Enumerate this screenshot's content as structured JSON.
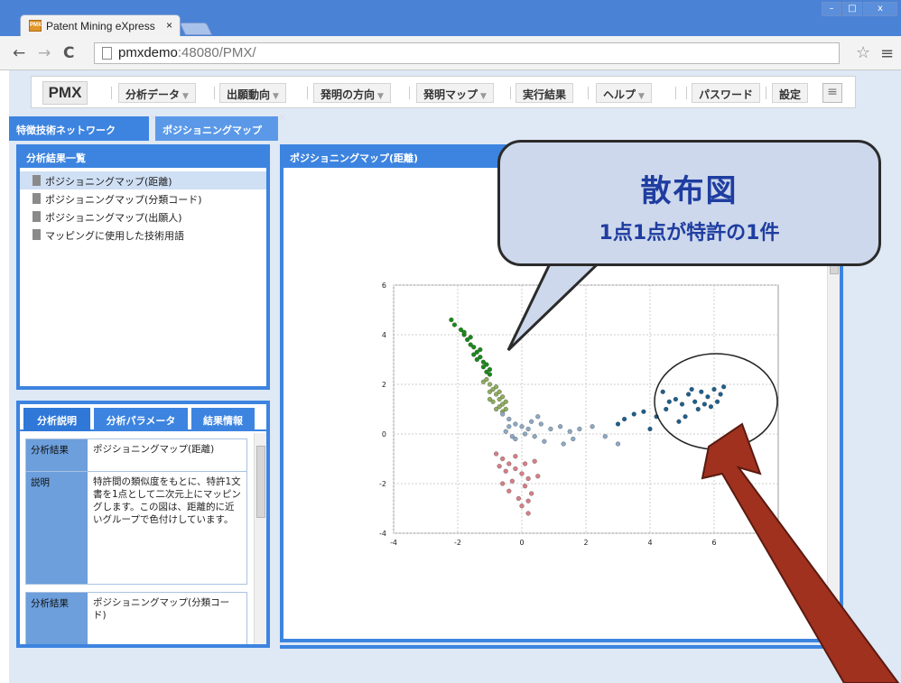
{
  "browser": {
    "tab_title": "Patent Mining eXpress",
    "tab_close": "×",
    "favicon_text": "PMX",
    "url_host": "pmxdemo",
    "url_rest": ":48080/PMX/",
    "window_buttons": [
      "–",
      "□",
      "x"
    ]
  },
  "toolbar": {
    "logo": "PMX",
    "menus": [
      {
        "label": "分析データ",
        "caret": "▼"
      },
      {
        "label": "出願動向",
        "caret": "▼"
      },
      {
        "label": "発明の方向",
        "caret": "▼"
      },
      {
        "label": "発明マップ",
        "caret": "▼"
      },
      {
        "label": "実行結果",
        "caret": ""
      },
      {
        "label": "ヘルプ",
        "caret": "▼"
      },
      {
        "label": "パスワード",
        "caret": ""
      },
      {
        "label": "設定",
        "caret": ""
      }
    ],
    "list_icon": "≡"
  },
  "main_tabs": [
    {
      "label": "特徴技術ネットワーク",
      "close": "×"
    },
    {
      "label": "ポジショニングマップ",
      "close": "×"
    }
  ],
  "results_panel": {
    "title": "分析結果一覧",
    "items": [
      "ポジショニングマップ(距離)",
      "ポジショニングマップ(分類コード)",
      "ポジショニングマップ(出願人)",
      "マッピングに使用した技術用語"
    ]
  },
  "info_panel": {
    "tabs": [
      "分析説明",
      "分析パラメータ",
      "結果情報"
    ],
    "rows": [
      {
        "k": "分析結果",
        "v": "ポジショニングマップ(距離)"
      },
      {
        "k": "説明",
        "v": "特許間の類似度をもとに、特許1文書を1点として二次元上にマッピングします。この図は、距離的に近いグループで色付けしています。"
      }
    ],
    "rows2": [
      {
        "k": "分析結果",
        "v": "ポジショニングマップ(分類コード)"
      }
    ]
  },
  "chart_panel": {
    "title": "ポジショニングマップ(距離)"
  },
  "callout": {
    "title": "散布図",
    "subtitle": "1点1点が特許の1件"
  },
  "chart_data": {
    "type": "scatter",
    "xlim": [
      -4,
      8
    ],
    "ylim": [
      -4,
      6
    ],
    "x_ticks": [
      "-4",
      "-2",
      "0",
      "2",
      "4",
      "6"
    ],
    "y_ticks": [
      "6",
      "4",
      "2",
      "0",
      "-2",
      "-4"
    ],
    "grid": true,
    "series": [
      {
        "color": "#1a8a1a",
        "points": [
          [
            -2.2,
            4.6
          ],
          [
            -2.1,
            4.4
          ],
          [
            -1.9,
            4.2
          ],
          [
            -1.8,
            4.0
          ],
          [
            -1.7,
            3.8
          ],
          [
            -1.6,
            3.6
          ],
          [
            -1.5,
            3.5
          ],
          [
            -1.4,
            3.3
          ],
          [
            -1.3,
            3.1
          ],
          [
            -1.2,
            2.9
          ],
          [
            -1.1,
            2.8
          ],
          [
            -1.0,
            2.6
          ],
          [
            -1.3,
            3.4
          ],
          [
            -1.6,
            3.9
          ],
          [
            -1.4,
            3.0
          ],
          [
            -1.2,
            2.7
          ],
          [
            -1.5,
            3.2
          ],
          [
            -1.1,
            2.5
          ],
          [
            -1.8,
            4.1
          ],
          [
            -1.0,
            2.4
          ]
        ]
      },
      {
        "color": "#8fae5e",
        "points": [
          [
            -1.1,
            2.2
          ],
          [
            -1.0,
            2.0
          ],
          [
            -0.9,
            1.8
          ],
          [
            -0.8,
            1.6
          ],
          [
            -0.7,
            1.4
          ],
          [
            -0.6,
            1.2
          ],
          [
            -0.5,
            1.0
          ],
          [
            -1.0,
            1.7
          ],
          [
            -0.8,
            1.9
          ],
          [
            -0.6,
            1.5
          ],
          [
            -0.9,
            1.3
          ],
          [
            -0.7,
            1.1
          ],
          [
            -1.2,
            2.1
          ],
          [
            -0.5,
            1.3
          ],
          [
            -0.8,
            1.0
          ],
          [
            -1.0,
            1.4
          ],
          [
            -0.6,
            0.9
          ],
          [
            -0.7,
            1.7
          ]
        ]
      },
      {
        "color": "#8da9c4",
        "points": [
          [
            -0.6,
            0.8
          ],
          [
            -0.4,
            0.6
          ],
          [
            -0.2,
            0.4
          ],
          [
            0.0,
            0.3
          ],
          [
            0.2,
            0.2
          ],
          [
            -0.5,
            0.1
          ],
          [
            -0.3,
            -0.1
          ],
          [
            0.1,
            0.0
          ],
          [
            0.3,
            0.5
          ],
          [
            0.6,
            0.4
          ],
          [
            0.9,
            0.2
          ],
          [
            1.2,
            0.3
          ],
          [
            1.5,
            0.1
          ],
          [
            1.8,
            0.2
          ],
          [
            1.6,
            -0.2
          ],
          [
            1.3,
            -0.4
          ],
          [
            2.2,
            0.3
          ],
          [
            2.6,
            -0.1
          ],
          [
            3.0,
            -0.4
          ],
          [
            -0.2,
            -0.2
          ],
          [
            0.4,
            -0.1
          ],
          [
            0.7,
            -0.3
          ],
          [
            -0.4,
            0.3
          ],
          [
            0.5,
            0.7
          ]
        ]
      },
      {
        "color": "#d77f86",
        "points": [
          [
            -0.8,
            -0.8
          ],
          [
            -0.6,
            -1.0
          ],
          [
            -0.4,
            -1.2
          ],
          [
            -0.2,
            -1.4
          ],
          [
            0.0,
            -1.6
          ],
          [
            0.2,
            -1.8
          ],
          [
            -0.5,
            -1.5
          ],
          [
            -0.3,
            -1.9
          ],
          [
            0.1,
            -2.1
          ],
          [
            0.3,
            -2.4
          ],
          [
            -0.1,
            -2.6
          ],
          [
            0.0,
            -2.9
          ],
          [
            0.2,
            -3.2
          ],
          [
            -0.6,
            -2.0
          ],
          [
            0.4,
            -1.1
          ],
          [
            -0.2,
            -0.9
          ],
          [
            0.5,
            -1.7
          ],
          [
            -0.4,
            -2.3
          ],
          [
            0.1,
            -1.2
          ],
          [
            -0.7,
            -1.3
          ],
          [
            0.2,
            -2.7
          ]
        ]
      },
      {
        "color": "#1e5f8c",
        "points": [
          [
            3.0,
            0.4
          ],
          [
            3.2,
            0.6
          ],
          [
            3.5,
            0.8
          ],
          [
            3.8,
            0.9
          ],
          [
            4.2,
            0.7
          ],
          [
            4.5,
            1.0
          ],
          [
            4.8,
            1.4
          ],
          [
            5.0,
            1.2
          ],
          [
            5.2,
            1.6
          ],
          [
            5.4,
            1.3
          ],
          [
            5.6,
            1.7
          ],
          [
            5.8,
            1.5
          ],
          [
            6.0,
            1.8
          ],
          [
            6.2,
            1.6
          ],
          [
            5.5,
            1.0
          ],
          [
            5.1,
            0.7
          ],
          [
            4.9,
            0.5
          ],
          [
            5.7,
            1.2
          ],
          [
            6.1,
            1.3
          ],
          [
            5.3,
            1.8
          ],
          [
            4.6,
            1.3
          ],
          [
            5.9,
            1.1
          ],
          [
            6.3,
            1.9
          ],
          [
            4.4,
            1.7
          ],
          [
            4.0,
            0.2
          ]
        ]
      }
    ]
  }
}
